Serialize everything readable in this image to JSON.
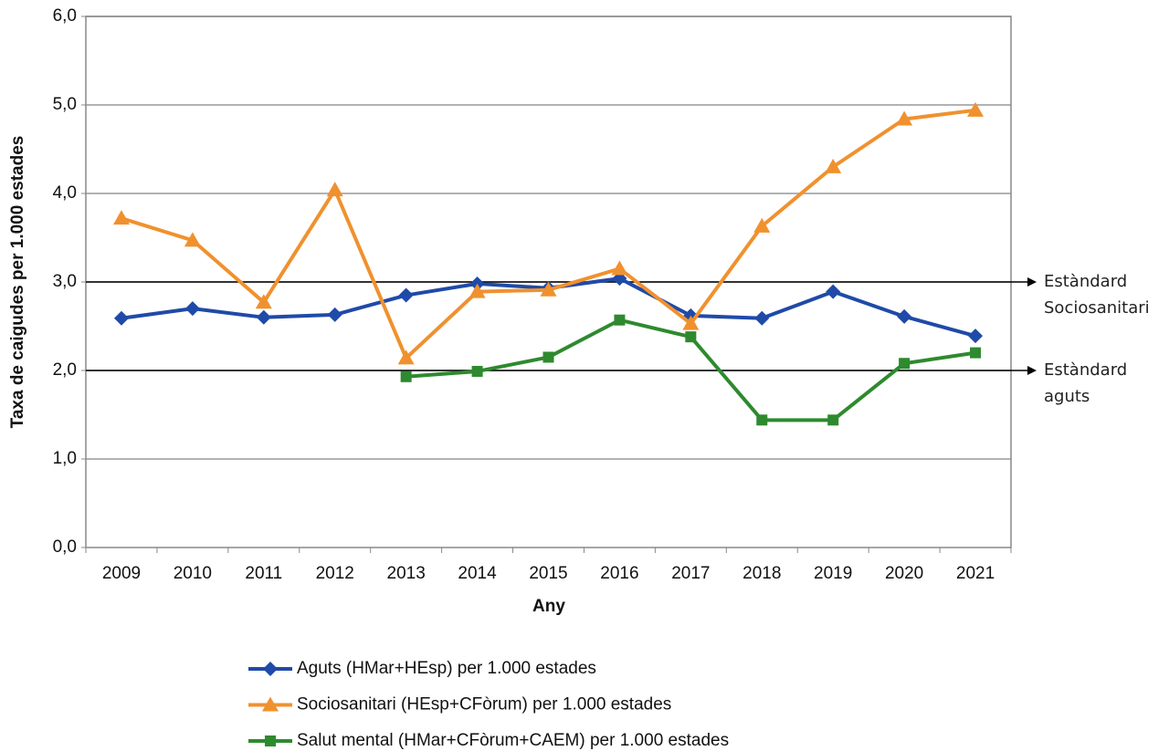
{
  "chart_data": {
    "type": "line",
    "xlabel": "Any",
    "ylabel": "Taxa de caigudes per 1.000 estades",
    "categories": [
      "2009",
      "2010",
      "2011",
      "2012",
      "2013",
      "2014",
      "2015",
      "2016",
      "2017",
      "2018",
      "2019",
      "2020",
      "2021"
    ],
    "series": [
      {
        "name": "Aguts (HMar+HEsp) per 1.000 estades",
        "color": "#1f4aa8",
        "marker": "diamond",
        "values": [
          2.59,
          2.7,
          2.6,
          2.63,
          2.85,
          2.98,
          2.93,
          3.04,
          2.62,
          2.59,
          2.89,
          2.61,
          2.39
        ]
      },
      {
        "name": "Sociosanitari (HEsp+CFòrum) per 1.000 estades",
        "color": "#f0912e",
        "marker": "triangle",
        "values": [
          3.72,
          3.47,
          2.77,
          4.04,
          2.14,
          2.89,
          2.91,
          3.15,
          2.53,
          3.63,
          4.3,
          4.84,
          4.94
        ]
      },
      {
        "name": "Salut mental (HMar+CFòrum+CAEM) per 1.000 estades",
        "color": "#2e8a2e",
        "marker": "square",
        "values": [
          null,
          null,
          null,
          null,
          1.93,
          1.99,
          2.15,
          2.57,
          2.38,
          1.44,
          1.44,
          2.08,
          2.2
        ]
      }
    ],
    "ylim": [
      0,
      6
    ],
    "yticks": [
      {
        "value": 0,
        "label": "0,0"
      },
      {
        "value": 1,
        "label": "1,0"
      },
      {
        "value": 2,
        "label": "2,0"
      },
      {
        "value": 3,
        "label": "3,0"
      },
      {
        "value": 4,
        "label": "4,0"
      },
      {
        "value": 5,
        "label": "5,0"
      },
      {
        "value": 6,
        "label": "6,0"
      }
    ],
    "grid": true,
    "reference_lines": [
      {
        "value": 3,
        "label": [
          "Estàndard",
          "Sociosanitari"
        ]
      },
      {
        "value": 2,
        "label": [
          "Estàndard",
          "aguts"
        ]
      }
    ],
    "legend": "bottom"
  }
}
